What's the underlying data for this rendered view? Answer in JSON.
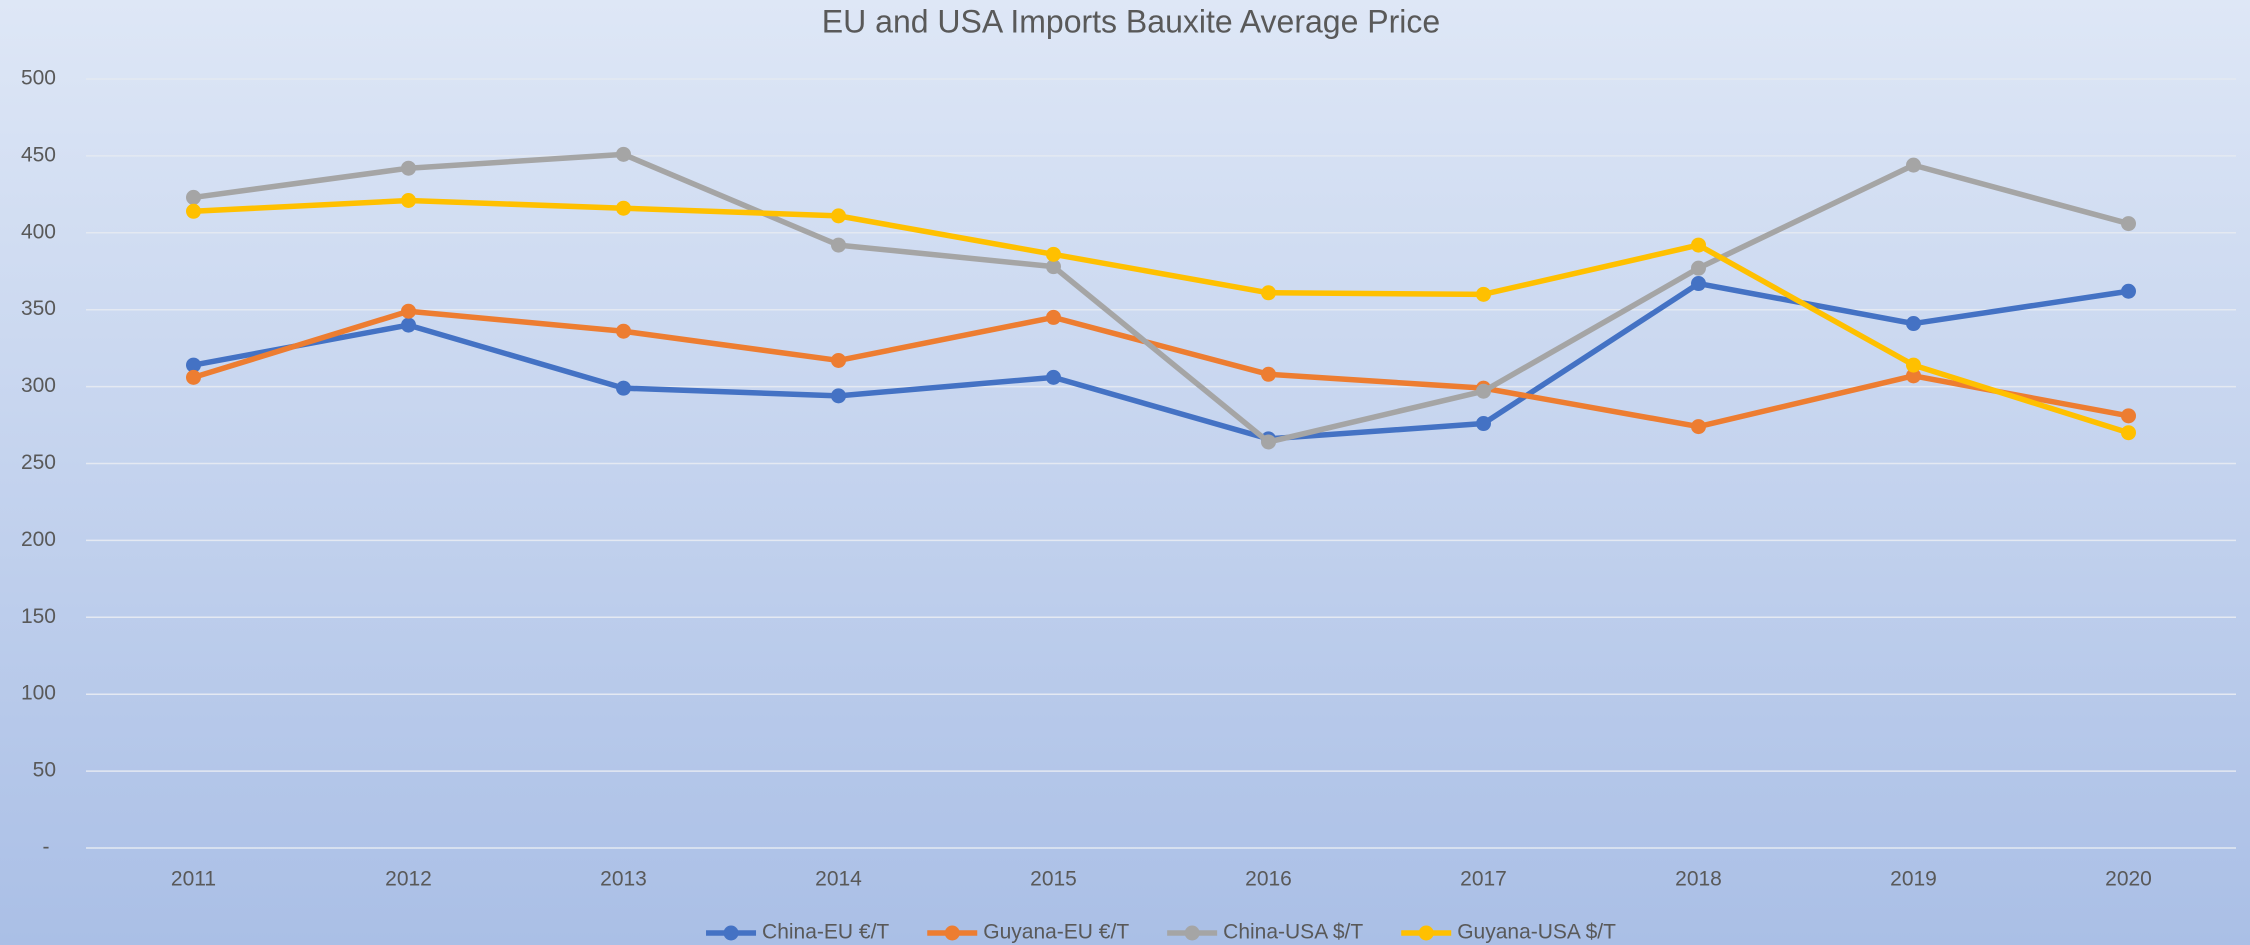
{
  "chart_data": {
    "type": "line",
    "title": "EU and USA Imports Bauxite Average Price",
    "categories": [
      "2011",
      "2012",
      "2013",
      "2014",
      "2015",
      "2016",
      "2017",
      "2018",
      "2019",
      "2020"
    ],
    "series": [
      {
        "name": "China-EU €/T",
        "color": "#4472c4",
        "values": [
          314,
          340,
          299,
          294,
          306,
          266,
          276,
          367,
          341,
          362
        ]
      },
      {
        "name": "Guyana-EU €/T",
        "color": "#ed7d31",
        "values": [
          306,
          349,
          336,
          317,
          345,
          308,
          299,
          274,
          307,
          281
        ]
      },
      {
        "name": "China-USA $/T",
        "color": "#a5a5a5",
        "values": [
          423,
          442,
          451,
          392,
          378,
          264,
          297,
          377,
          444,
          406
        ]
      },
      {
        "name": "Guyana-USA $/T",
        "color": "#ffc000",
        "values": [
          414,
          421,
          416,
          411,
          386,
          361,
          360,
          392,
          314,
          270
        ]
      }
    ],
    "ylim": [
      0,
      500
    ],
    "yticks": [
      {
        "value": 0,
        "label": "-"
      },
      50,
      100,
      150,
      200,
      250,
      300,
      350,
      400,
      450,
      500
    ],
    "grid": true,
    "legend": "bottom"
  }
}
